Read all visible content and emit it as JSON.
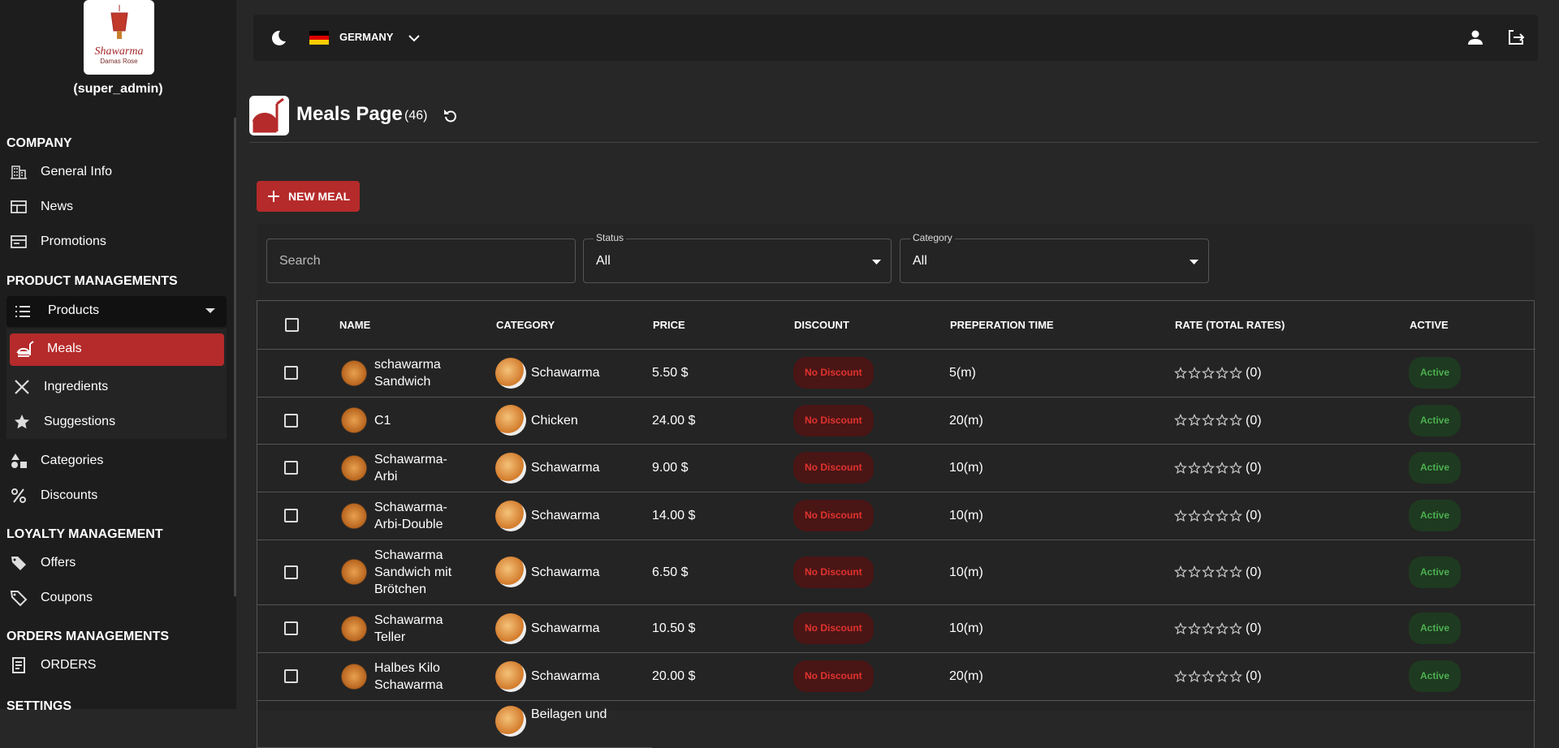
{
  "sidebar": {
    "logo": {
      "name": "Shawarma",
      "tagline": "Damas Rose"
    },
    "role": "(super_admin)",
    "company": {
      "title": "COMPANY",
      "items": [
        "General Info",
        "News",
        "Promotions"
      ]
    },
    "products": {
      "title": "PRODUCT MANAGEMENTS",
      "group": "Products",
      "subitems": [
        "Meals",
        "Ingredients",
        "Suggestions"
      ],
      "items": [
        "Categories",
        "Discounts"
      ]
    },
    "loyalty": {
      "title": "LOYALTY MANAGEMENT",
      "items": [
        "Offers",
        "Coupons"
      ]
    },
    "orders": {
      "title": "ORDERS MANAGEMENTS",
      "items": [
        "ORDERS"
      ]
    },
    "settings": {
      "title": "SETTINGS"
    }
  },
  "topbar": {
    "country": "GERMANY"
  },
  "page": {
    "title": "Meals Page",
    "count": "(46)",
    "new_button": "NEW MEAL"
  },
  "filters": {
    "search_placeholder": "Search",
    "status": {
      "label": "Status",
      "value": "All"
    },
    "category": {
      "label": "Category",
      "value": "All"
    }
  },
  "table": {
    "columns": [
      "NAME",
      "CATEGORY",
      "PRICE",
      "DISCOUNT",
      "PREPERATION TIME",
      "RATE (TOTAL RATES)",
      "ACTIVE"
    ],
    "rows": [
      {
        "name": "schawarma Sandwich",
        "category": "Schawarma",
        "price": "5.50 $",
        "discount": "No Discount",
        "prep": "5(m)",
        "rating": "(0)",
        "active": "Active"
      },
      {
        "name": "C1",
        "category": "Chicken",
        "price": "24.00 $",
        "discount": "No Discount",
        "prep": "20(m)",
        "rating": "(0)",
        "active": "Active"
      },
      {
        "name": "Schawarma-Arbi",
        "category": "Schawarma",
        "price": "9.00 $",
        "discount": "No Discount",
        "prep": "10(m)",
        "rating": "(0)",
        "active": "Active"
      },
      {
        "name": "Schawarma-Arbi-Double",
        "category": "Schawarma",
        "price": "14.00 $",
        "discount": "No Discount",
        "prep": "10(m)",
        "rating": "(0)",
        "active": "Active"
      },
      {
        "name": "Schawarma Sandwich mit Brötchen",
        "category": "Schawarma",
        "price": "6.50 $",
        "discount": "No Discount",
        "prep": "10(m)",
        "rating": "(0)",
        "active": "Active"
      },
      {
        "name": "Schawarma Teller",
        "category": "Schawarma",
        "price": "10.50 $",
        "discount": "No Discount",
        "prep": "10(m)",
        "rating": "(0)",
        "active": "Active"
      },
      {
        "name": "Halbes Kilo Schawarma",
        "category": "Schawarma",
        "price": "20.00 $",
        "discount": "No Discount",
        "prep": "20(m)",
        "rating": "(0)",
        "active": "Active"
      }
    ],
    "partial_row": {
      "category": "Beilagen und"
    }
  }
}
